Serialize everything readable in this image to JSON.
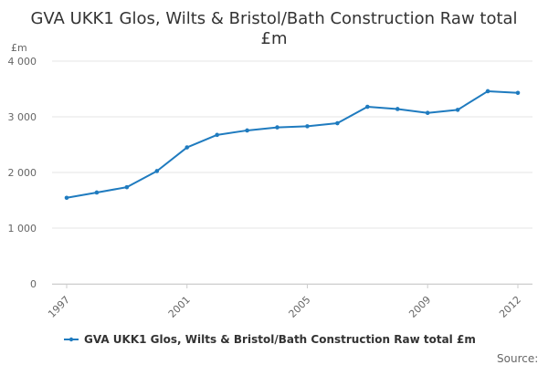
{
  "chart_data": {
    "type": "line",
    "title_line1": "GVA UKK1 Glos, Wilts & Bristol/Bath Construction Raw total",
    "title_line2": "£m",
    "ylabel": "£m",
    "xlabel": "",
    "x": [
      1997,
      1998,
      1999,
      2000,
      2001,
      2002,
      2003,
      2004,
      2005,
      2006,
      2007,
      2008,
      2009,
      2010,
      2011,
      2012
    ],
    "series": [
      {
        "name": "GVA UKK1 Glos, Wilts & Bristol/Bath Construction Raw total £m",
        "values": [
          1545,
          1640,
          1735,
          2025,
          2450,
          2675,
          2755,
          2810,
          2830,
          2885,
          3180,
          3140,
          3070,
          3125,
          3460,
          3430
        ]
      }
    ],
    "ylim": [
      0,
      4000
    ],
    "yticks": [
      0,
      1000,
      2000,
      3000,
      4000
    ],
    "ytick_labels": [
      "0",
      "1 000",
      "2 000",
      "3 000",
      "4 000"
    ],
    "xticks": [
      1997,
      2001,
      2005,
      2009,
      2012
    ],
    "xtick_labels": [
      "1997",
      "2001",
      "2005",
      "2009",
      "2012"
    ],
    "grid": "horizontal",
    "legend": "bottom",
    "line_color": "#1f7bbf",
    "grid_color": "#e6e6e6",
    "source_label": "Source:"
  }
}
